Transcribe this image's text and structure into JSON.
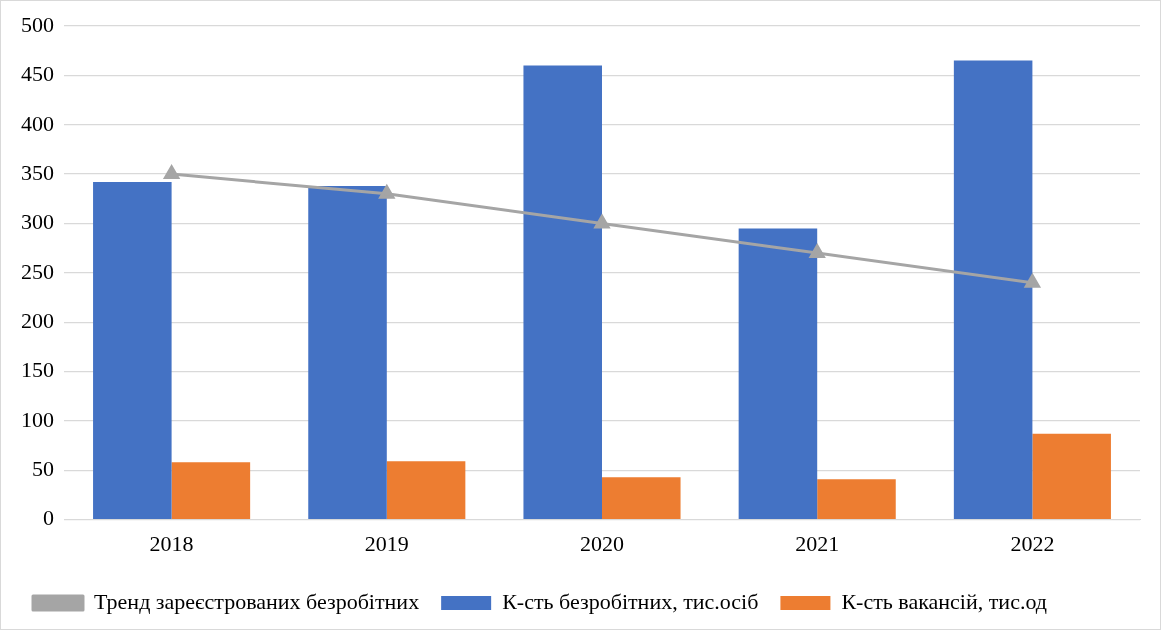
{
  "chart_data": {
    "type": "bar",
    "categories": [
      "2018",
      "2019",
      "2020",
      "2021",
      "2022"
    ],
    "series": [
      {
        "name": "К-сть безробітних, тис.осіб",
        "color": "#4472c4",
        "values": [
          342,
          338,
          460,
          295,
          465
        ]
      },
      {
        "name": "К-сть вакансій, тис.од",
        "color": "#ed7d31",
        "values": [
          58,
          59,
          43,
          41,
          87
        ]
      },
      {
        "name": "Тренд зареєстрованих безробітних",
        "type": "line",
        "color": "#a5a5a5",
        "values": [
          350,
          330,
          300,
          270,
          240
        ],
        "marker": "triangle",
        "line_style": "solid"
      }
    ],
    "ylim": [
      0,
      500
    ],
    "yticks": [
      0,
      50,
      100,
      150,
      200,
      250,
      300,
      350,
      400,
      450,
      500
    ],
    "grid": "y",
    "legend": "bottom"
  }
}
